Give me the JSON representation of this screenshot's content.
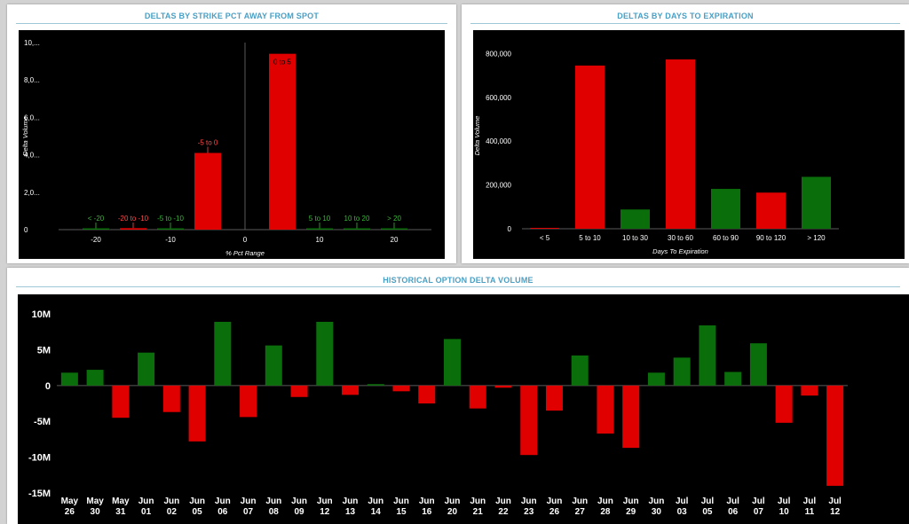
{
  "panels": {
    "strike": {
      "title": "DELTAS BY STRIKE PCT AWAY FROM SPOT"
    },
    "expiry": {
      "title": "DELTAS BY DAYS TO EXPIRATION"
    },
    "history": {
      "title": "HISTORICAL OPTION DELTA VOLUME"
    }
  },
  "colors": {
    "positive": "#0a6e0a",
    "negative": "#e00000",
    "label_positive": "#3cb43c",
    "label_negative": "#ff4a4a",
    "title": "#4a9fc4",
    "axis_text": "#ffffff",
    "zero_line": "#5a5a5a"
  },
  "chart_data": [
    {
      "id": "strike",
      "type": "bar",
      "title": "DELTAS BY STRIKE PCT AWAY FROM SPOT",
      "xlabel": "% Pct Range",
      "ylabel": "Delta Volume",
      "xlim": [
        -25,
        25
      ],
      "ylim": [
        0,
        10000000
      ],
      "x_ticks": [
        -20,
        -10,
        0,
        10,
        20
      ],
      "y_tick_labels": [
        "0",
        "2,0...",
        "4,0...",
        "6,0...",
        "8,0...",
        "10,..."
      ],
      "y_tick_values": [
        0,
        2000000,
        4000000,
        6000000,
        8000000,
        10000000
      ],
      "bars": [
        {
          "label": "< -20",
          "x": -20,
          "value": 20000,
          "sign": "positive"
        },
        {
          "label": "-20 to -10",
          "x": -15,
          "value": 80000,
          "sign": "negative"
        },
        {
          "label": "-5 to -10",
          "x": -10,
          "value": 40000,
          "sign": "positive"
        },
        {
          "label": "-5 to 0",
          "x": -5,
          "value": 4100000,
          "sign": "negative"
        },
        {
          "label": "0 to 5",
          "x": 5,
          "value": 9400000,
          "sign": "negative"
        },
        {
          "label": "5 to 10",
          "x": 10,
          "value": 40000,
          "sign": "positive"
        },
        {
          "label": "10 to 20",
          "x": 15,
          "value": 30000,
          "sign": "positive"
        },
        {
          "label": "> 20",
          "x": 20,
          "value": 20000,
          "sign": "positive"
        }
      ]
    },
    {
      "id": "expiry",
      "type": "bar",
      "title": "DELTAS BY DAYS TO EXPIRATION",
      "xlabel": "Days To Expiration",
      "ylabel": "Delta Volume",
      "ylim": [
        0,
        850000
      ],
      "y_tick_labels": [
        "0",
        "200,000",
        "400,000",
        "600,000",
        "800,000"
      ],
      "y_tick_values": [
        0,
        200000,
        400000,
        600000,
        800000
      ],
      "categories": [
        "< 5",
        "5 to 10",
        "10 to 30",
        "30 to 60",
        "60 to 90",
        "90 to 120",
        "> 120"
      ],
      "values": [
        3000,
        745000,
        88000,
        773000,
        182000,
        165000,
        237000
      ],
      "signs": [
        "negative",
        "negative",
        "positive",
        "negative",
        "positive",
        "negative",
        "positive"
      ]
    },
    {
      "id": "history",
      "type": "bar",
      "title": "HISTORICAL OPTION DELTA VOLUME",
      "ylim": [
        -15000000,
        11000000
      ],
      "y_tick_labels": [
        "-15M",
        "-10M",
        "-5M",
        "0",
        "5M",
        "10M"
      ],
      "y_tick_values": [
        -15000000,
        -10000000,
        -5000000,
        0,
        5000000,
        10000000
      ],
      "categories": [
        [
          "May",
          "26"
        ],
        [
          "May",
          "30"
        ],
        [
          "May",
          "31"
        ],
        [
          "Jun",
          "01"
        ],
        [
          "Jun",
          "02"
        ],
        [
          "Jun",
          "05"
        ],
        [
          "Jun",
          "06"
        ],
        [
          "Jun",
          "07"
        ],
        [
          "Jun",
          "08"
        ],
        [
          "Jun",
          "09"
        ],
        [
          "Jun",
          "12"
        ],
        [
          "Jun",
          "13"
        ],
        [
          "Jun",
          "14"
        ],
        [
          "Jun",
          "15"
        ],
        [
          "Jun",
          "16"
        ],
        [
          "Jun",
          "20"
        ],
        [
          "Jun",
          "21"
        ],
        [
          "Jun",
          "22"
        ],
        [
          "Jun",
          "23"
        ],
        [
          "Jun",
          "26"
        ],
        [
          "Jun",
          "27"
        ],
        [
          "Jun",
          "28"
        ],
        [
          "Jun",
          "29"
        ],
        [
          "Jun",
          "30"
        ],
        [
          "Jul",
          "03"
        ],
        [
          "Jul",
          "05"
        ],
        [
          "Jul",
          "06"
        ],
        [
          "Jul",
          "07"
        ],
        [
          "Jul",
          "10"
        ],
        [
          "Jul",
          "11"
        ],
        [
          "Jul",
          "12"
        ]
      ],
      "values": [
        1800000,
        2200000,
        -4500000,
        4600000,
        -3700000,
        -7800000,
        8900000,
        -4400000,
        5600000,
        -1600000,
        8900000,
        -1300000,
        200000,
        -800000,
        -2500000,
        6500000,
        -3200000,
        -300000,
        -9700000,
        -3500000,
        4200000,
        -6700000,
        -8700000,
        1800000,
        3900000,
        8400000,
        1900000,
        5900000,
        -5200000,
        -1400000,
        -14000000
      ]
    }
  ]
}
